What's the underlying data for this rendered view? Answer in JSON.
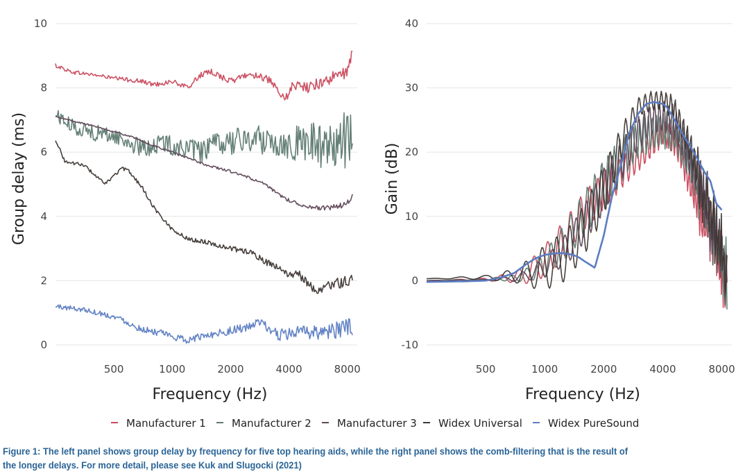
{
  "chart_data": [
    {
      "type": "line",
      "xlabel": "Frequency (Hz)",
      "ylabel": "Group delay (ms)",
      "x_scale": "log",
      "xlim": [
        250,
        9000
      ],
      "ylim": [
        0,
        10
      ],
      "x_ticks": [
        500,
        1000,
        2000,
        4000,
        8000
      ],
      "x_tick_labels": [
        "500",
        "1000",
        "2000",
        "4000",
        "8000"
      ],
      "y_ticks": [
        0,
        2,
        4,
        6,
        8,
        10
      ],
      "y_tick_labels": [
        "0",
        "2",
        "4",
        "6",
        "8",
        "10"
      ],
      "grid": true,
      "series": [
        {
          "name": "Manufacturer 1",
          "color": "#c9485b",
          "x": [
            250,
            300,
            400,
            500,
            600,
            700,
            800,
            900,
            1000,
            1200,
            1400,
            1600,
            2000,
            2400,
            2800,
            3200,
            3600,
            3800,
            4200,
            5000,
            6000,
            7000,
            8000,
            8500
          ],
          "y": [
            8.7,
            8.5,
            8.4,
            8.3,
            8.25,
            8.2,
            8.1,
            8.15,
            8.2,
            8.0,
            8.4,
            8.5,
            8.2,
            8.4,
            8.4,
            8.2,
            7.8,
            7.6,
            8.1,
            8.0,
            8.2,
            8.35,
            8.5,
            9.0
          ],
          "noise": 0.15
        },
        {
          "name": "Manufacturer 2",
          "color": "#5e7a70",
          "x": [
            250,
            300,
            400,
            500,
            600,
            700,
            800,
            900,
            1000,
            1200,
            1400,
            1600,
            2000,
            2400,
            3000,
            3600,
            4000,
            5000,
            6000,
            7000,
            8000,
            8500
          ],
          "y": [
            7.2,
            6.8,
            6.6,
            6.5,
            6.3,
            6.1,
            6.2,
            6.3,
            6.2,
            6.1,
            6.0,
            6.2,
            6.3,
            6.4,
            6.4,
            6.3,
            6.3,
            6.3,
            6.2,
            6.3,
            6.4,
            6.5
          ],
          "noise": 0.6
        },
        {
          "name": "Manufacturer 3",
          "color": "#5d4657",
          "x": [
            250,
            400,
            600,
            800,
            1000,
            1500,
            2000,
            2500,
            3000,
            3500,
            4000,
            5000,
            6000,
            7000,
            8000,
            8500
          ],
          "y": [
            7.1,
            6.8,
            6.5,
            6.2,
            6.0,
            5.6,
            5.4,
            5.2,
            5.0,
            4.7,
            4.5,
            4.3,
            4.25,
            4.3,
            4.4,
            4.6
          ],
          "noise": 0.06
        },
        {
          "name": "Widex Universal",
          "color": "#3d3632",
          "x": [
            250,
            280,
            350,
            450,
            550,
            600,
            700,
            800,
            900,
            1000,
            1200,
            1500,
            2000,
            2500,
            3000,
            3500,
            4000,
            4500,
            5000,
            5500,
            6000,
            7000,
            8000,
            8500
          ],
          "y": [
            6.4,
            5.7,
            5.6,
            5.0,
            5.5,
            5.4,
            4.9,
            4.3,
            3.9,
            3.6,
            3.3,
            3.2,
            3.0,
            2.9,
            2.6,
            2.4,
            2.2,
            2.2,
            1.9,
            1.7,
            1.8,
            1.9,
            2.0,
            2.0
          ],
          "noise": 0.12
        },
        {
          "name": "Widex PureSound",
          "color": "#5b7cc2",
          "x": [
            250,
            350,
            450,
            550,
            650,
            750,
            900,
            1000,
            1200,
            1500,
            2000,
            2500,
            2800,
            3000,
            3500,
            4000,
            5000,
            6000,
            7000,
            8000,
            8500
          ],
          "y": [
            1.2,
            1.1,
            0.95,
            0.8,
            0.55,
            0.45,
            0.35,
            0.25,
            0.15,
            0.3,
            0.45,
            0.55,
            0.7,
            0.6,
            0.3,
            0.35,
            0.4,
            0.4,
            0.45,
            0.5,
            0.55
          ],
          "noise": 0.2
        }
      ]
    },
    {
      "type": "line",
      "xlabel": "Frequency (Hz)",
      "ylabel": "Gain (dB)",
      "x_scale": "log",
      "xlim": [
        250,
        9000
      ],
      "ylim": [
        -10,
        40
      ],
      "x_ticks": [
        500,
        1000,
        2000,
        4000,
        8000
      ],
      "x_tick_labels": [
        "500",
        "1000",
        "2000",
        "4000",
        "8000"
      ],
      "y_ticks": [
        -10,
        0,
        10,
        20,
        30,
        40
      ],
      "y_tick_labels": [
        "-10",
        "0",
        "10",
        "20",
        "30",
        "40"
      ],
      "grid": true,
      "series": [
        {
          "name": "Manufacturer 1",
          "color": "#c9485b",
          "x": [
            250,
            500,
            700,
            800,
            1000,
            1300,
            1600,
            2000,
            2500,
            3000,
            3500,
            4000,
            4500,
            5000,
            5500,
            6000,
            7000,
            8000,
            8500
          ],
          "y": [
            0,
            0.2,
            0.5,
            1,
            3,
            7,
            11,
            14,
            17,
            19,
            21,
            23,
            22,
            19,
            15,
            12,
            7,
            3,
            0
          ],
          "ripple": [
            0,
            0.2,
            0.8,
            1.5,
            2.5,
            3,
            3,
            3,
            2.5,
            2,
            2,
            2,
            2,
            2,
            2.5,
            3,
            3.5,
            4,
            4
          ],
          "period": 0.045
        },
        {
          "name": "Manufacturer 2",
          "color": "#5e7a70",
          "x": [
            250,
            500,
            700,
            800,
            1000,
            1300,
            1600,
            2000,
            2500,
            3000,
            3500,
            4000,
            4500,
            5000,
            5500,
            6000,
            7000,
            8000,
            8500
          ],
          "y": [
            0,
            0.2,
            0.4,
            0.8,
            2.5,
            6.5,
            10.5,
            15,
            19,
            22,
            23,
            23.5,
            23,
            21,
            18,
            15,
            9,
            4,
            1
          ],
          "ripple": [
            0,
            0.1,
            0.5,
            1,
            2,
            3,
            3.5,
            4,
            3.5,
            3,
            3,
            3,
            3,
            3,
            3,
            3,
            3.5,
            4,
            4
          ],
          "period": 0.038
        },
        {
          "name": "Manufacturer 3",
          "color": "#5d4657",
          "x": [
            250,
            500,
            700,
            800,
            1000,
            1300,
            1600,
            2000,
            2500,
            3000,
            3500,
            4000,
            4500,
            5000,
            5500,
            6000,
            7000,
            8000,
            8500
          ],
          "y": [
            0,
            0.1,
            0.3,
            0.8,
            2,
            5,
            9,
            14,
            19,
            23,
            25,
            25.5,
            25,
            22,
            19,
            16,
            10,
            4,
            0
          ],
          "ripple": [
            0,
            0.1,
            0.4,
            0.8,
            1.5,
            2.5,
            3,
            3.5,
            3,
            2.5,
            2.5,
            2.5,
            2.5,
            2.5,
            3,
            3,
            3.5,
            4,
            4
          ],
          "period": 0.05
        },
        {
          "name": "Widex Universal",
          "color": "#3d3632",
          "x": [
            250,
            500,
            700,
            800,
            1000,
            1300,
            1600,
            2000,
            2500,
            3000,
            3500,
            4000,
            4500,
            5000,
            5500,
            6000,
            7000,
            8000,
            8500
          ],
          "y": [
            0.3,
            0.5,
            0.8,
            1,
            2,
            4,
            8,
            14,
            22,
            27,
            28,
            28,
            27,
            24,
            21,
            17,
            10,
            4,
            1
          ],
          "ripple": [
            0,
            0.3,
            1,
            2,
            3.5,
            4,
            4,
            4,
            2.5,
            1.5,
            1.5,
            1.5,
            2,
            2,
            2.5,
            3,
            4,
            5,
            5
          ],
          "period": 0.055
        },
        {
          "name": "Widex PureSound",
          "color": "#5b7cc2",
          "x": [
            250,
            400,
            500,
            600,
            700,
            800,
            900,
            1000,
            1100,
            1200,
            1300,
            1400,
            1500,
            1600,
            1700,
            1800,
            2000,
            2200,
            2500,
            2700,
            3000,
            3300,
            3600,
            4000,
            4200,
            4500,
            5000,
            5500,
            6000,
            6500,
            7000,
            7500,
            8000
          ],
          "y": [
            -0.2,
            -0.1,
            0,
            0.5,
            1.2,
            2.5,
            3.5,
            4.0,
            4.2,
            4.3,
            4.2,
            4.0,
            3.6,
            3.0,
            2.5,
            2.0,
            7.0,
            13.0,
            19.0,
            23.0,
            26.0,
            27.5,
            27.8,
            27.5,
            27.0,
            25.5,
            23.0,
            21.0,
            19.0,
            17.0,
            15.5,
            12.0,
            11.0
          ],
          "bold": true
        }
      ]
    }
  ],
  "legend": {
    "placement": "bottom",
    "entries": [
      {
        "label": "Manufacturer 1",
        "color": "#c9485b"
      },
      {
        "label": "Manufacturer 2",
        "color": "#5e7a70"
      },
      {
        "label": "Manufacturer 3",
        "color": "#5d4657"
      },
      {
        "label": "Widex Universal",
        "color": "#3d3632"
      },
      {
        "label": "Widex PureSound",
        "color": "#5b7cc2"
      }
    ]
  },
  "caption": {
    "line1": "Figure 1: The left panel shows group delay by frequency for five top hearing aids, while the right panel shows the comb-filtering that is the result of",
    "line2": "the longer delays. For more detail, please see Kuk and Slugocki (2021)",
    "color": "#2a6496"
  }
}
